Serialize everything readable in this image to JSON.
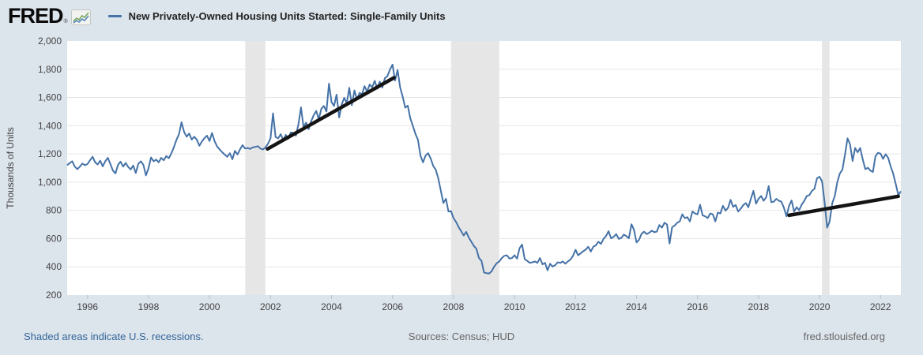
{
  "header": {
    "logo_text": "FRED",
    "registered_mark": "®",
    "series_title": "New Privately-Owned Housing Units Started: Single-Family Units"
  },
  "footer": {
    "recession_note": "Shaded areas indicate U.S. recessions.",
    "sources": "Sources: Census; HUD",
    "watermark": "fred.stlouisfed.org"
  },
  "colors": {
    "background": "#dce4ec",
    "plot_bg": "#ffffff",
    "line": "#4572a7",
    "trend": "#141414",
    "recession": "#e6e6e6",
    "gridline": "#e6e6e6",
    "tick_mark": "#b6c2cc",
    "tick_text": "#444444",
    "link_blue": "#336699",
    "muted_text": "#666666",
    "logo_icon_green": "#79a55e",
    "logo_icon_blue": "#5588bb"
  },
  "chart_data": {
    "type": "line",
    "title": "New Privately-Owned Housing Units Started: Single-Family Units",
    "ylabel": "Thousands of Units",
    "ylim": [
      200,
      2000
    ],
    "yticks": [
      200,
      400,
      600,
      800,
      1000,
      1200,
      1400,
      1600,
      1800,
      2000
    ],
    "xlim": [
      1995.3333,
      2022.6667
    ],
    "xticks": [
      1996,
      1998,
      2000,
      2002,
      2004,
      2006,
      2008,
      2010,
      2012,
      2014,
      2016,
      2018,
      2020,
      2022
    ],
    "grid": "horizontal",
    "legend_position": "top-left",
    "recessions": [
      [
        2001.17,
        2001.83
      ],
      [
        2007.92,
        2009.5
      ],
      [
        2020.08,
        2020.33
      ]
    ],
    "annotations": [
      {
        "type": "trendline",
        "from": [
          2001.9,
          1235
        ],
        "to": [
          2006.05,
          1740
        ]
      },
      {
        "type": "trendline",
        "from": [
          2019.0,
          765
        ],
        "to": [
          2022.58,
          900
        ]
      }
    ],
    "series": {
      "name": "New Privately-Owned Housing Units Started: Single-Family Units",
      "unit": "Thousands of Units",
      "frequency": "monthly",
      "start_x": 1995.3333,
      "step": 0.0833333,
      "values": [
        1120,
        1135,
        1148,
        1110,
        1092,
        1110,
        1132,
        1120,
        1128,
        1155,
        1180,
        1140,
        1125,
        1152,
        1112,
        1148,
        1172,
        1128,
        1082,
        1062,
        1122,
        1145,
        1110,
        1136,
        1108,
        1090,
        1118,
        1065,
        1130,
        1148,
        1122,
        1048,
        1098,
        1175,
        1148,
        1160,
        1140,
        1172,
        1155,
        1185,
        1170,
        1205,
        1248,
        1300,
        1340,
        1425,
        1355,
        1322,
        1345,
        1302,
        1322,
        1302,
        1258,
        1288,
        1312,
        1330,
        1292,
        1348,
        1290,
        1252,
        1232,
        1212,
        1195,
        1180,
        1205,
        1162,
        1222,
        1196,
        1232,
        1262,
        1238,
        1242,
        1235,
        1246,
        1250,
        1255,
        1238,
        1232,
        1246,
        1272,
        1310,
        1488,
        1320,
        1310,
        1340,
        1298,
        1335,
        1308,
        1352,
        1348,
        1330,
        1412,
        1530,
        1390,
        1422,
        1375,
        1432,
        1475,
        1505,
        1445,
        1520,
        1540,
        1500,
        1698,
        1568,
        1540,
        1620,
        1458,
        1550,
        1598,
        1560,
        1668,
        1545,
        1650,
        1585,
        1632,
        1622,
        1680,
        1642,
        1692,
        1672,
        1718,
        1662,
        1712,
        1670,
        1738,
        1752,
        1798,
        1833,
        1720,
        1795,
        1670,
        1605,
        1528,
        1542,
        1452,
        1400,
        1342,
        1300,
        1188,
        1140,
        1188,
        1205,
        1168,
        1115,
        1088,
        1028,
        940,
        852,
        882,
        792,
        795,
        745,
        718,
        682,
        652,
        622,
        648,
        608,
        578,
        548,
        528,
        462,
        442,
        360,
        355,
        352,
        368,
        402,
        426,
        438,
        462,
        478,
        482,
        458,
        462,
        482,
        458,
        532,
        558,
        455,
        442,
        428,
        432,
        438,
        428,
        462,
        418,
        428,
        375,
        422,
        402,
        412,
        432,
        428,
        438,
        422,
        438,
        452,
        478,
        521,
        482,
        495,
        510,
        522,
        542,
        508,
        542,
        552,
        578,
        562,
        598,
        618,
        652,
        602,
        612,
        632,
        598,
        605,
        628,
        618,
        602,
        702,
        662,
        573,
        592,
        635,
        649,
        632,
        642,
        656,
        645,
        650,
        696,
        678,
        712,
        700,
        565,
        680,
        692,
        712,
        722,
        772,
        745,
        752,
        722,
        792,
        778,
        772,
        840,
        765,
        758,
        745,
        778,
        772,
        722,
        785,
        778,
        832,
        798,
        818,
        875,
        825,
        838,
        792,
        812,
        838,
        852,
        822,
        882,
        938,
        848,
        882,
        902,
        868,
        892,
        972,
        858,
        862,
        882,
        868,
        862,
        818,
        758,
        832,
        870,
        792,
        822,
        802,
        842,
        868,
        902,
        908,
        938,
        952,
        1028,
        1038,
        1005,
        855,
        678,
        722,
        852,
        902,
        1002,
        1062,
        1088,
        1192,
        1310,
        1268,
        1150,
        1242,
        1212,
        1242,
        1160,
        1092,
        1102,
        1082,
        1072,
        1182,
        1208,
        1202,
        1165,
        1198,
        1172,
        1112,
        1060,
        985,
        908,
        935
      ]
    }
  }
}
